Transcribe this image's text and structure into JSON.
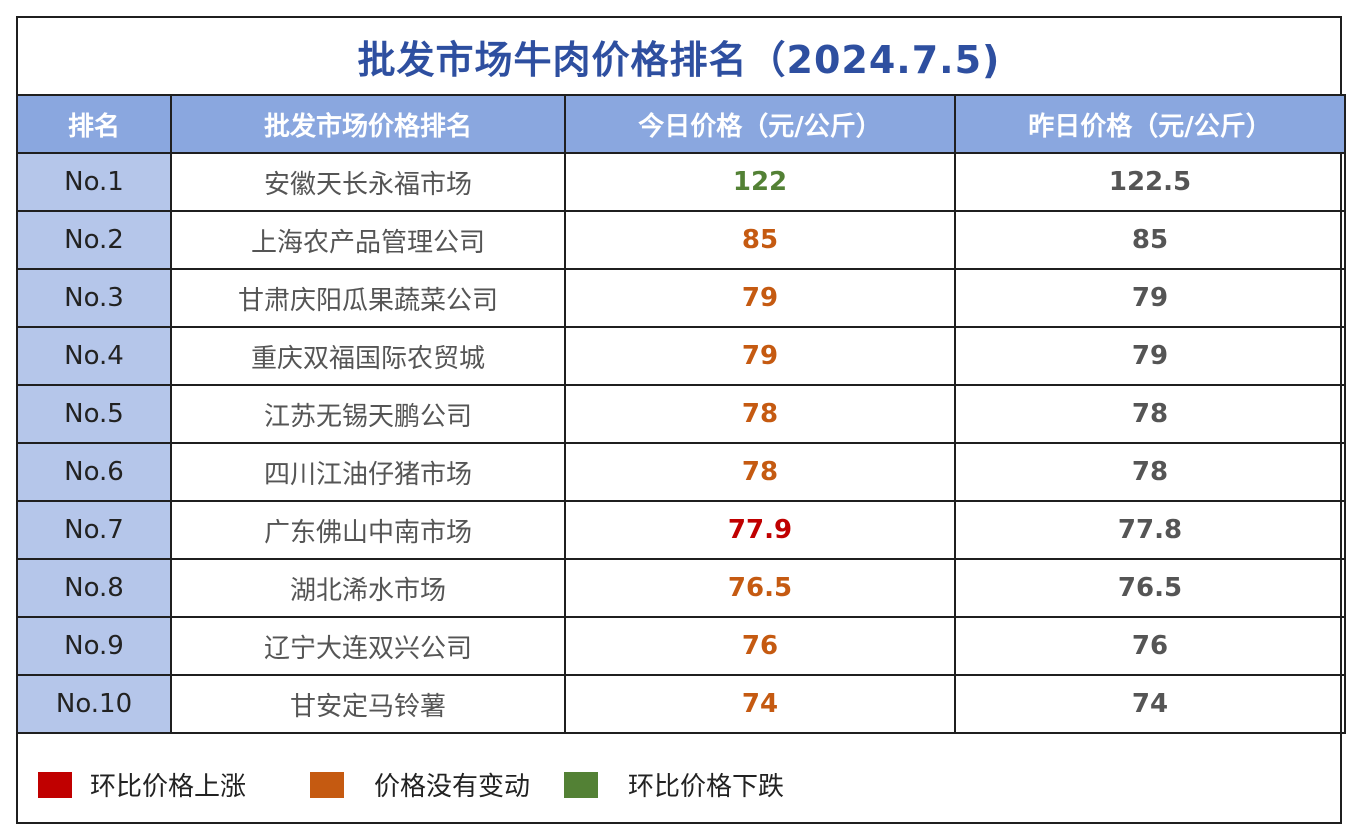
{
  "title": "批发市场牛肉价格排名（2024.7.5)",
  "colors": {
    "header_bg": "#8aa7df",
    "rank_bg": "#b5c6ea",
    "title": "#2e4fa0",
    "up": "#c00000",
    "same": "#c55a11",
    "down": "#538135"
  },
  "headers": [
    "排名",
    "批发市场价格排名",
    "今日价格（元/公斤）",
    "昨日价格（元/公斤）"
  ],
  "rows": [
    {
      "rank": "No.1",
      "market": "安徽天长永福市场",
      "today": "122",
      "yesterday": "122.5",
      "trend": "down"
    },
    {
      "rank": "No.2",
      "market": "上海农产品管理公司",
      "today": "85",
      "yesterday": "85",
      "trend": "same"
    },
    {
      "rank": "No.3",
      "market": "甘肃庆阳瓜果蔬菜公司",
      "today": "79",
      "yesterday": "79",
      "trend": "same"
    },
    {
      "rank": "No.4",
      "market": "重庆双福国际农贸城",
      "today": "79",
      "yesterday": "79",
      "trend": "same"
    },
    {
      "rank": "No.5",
      "market": "江苏无锡天鹏公司",
      "today": "78",
      "yesterday": "78",
      "trend": "same"
    },
    {
      "rank": "No.6",
      "market": "四川江油仔猪市场",
      "today": "78",
      "yesterday": "78",
      "trend": "same"
    },
    {
      "rank": "No.7",
      "market": "广东佛山中南市场",
      "today": "77.9",
      "yesterday": "77.8",
      "trend": "up"
    },
    {
      "rank": "No.8",
      "market": "湖北浠水市场",
      "today": "76.5",
      "yesterday": "76.5",
      "trend": "same"
    },
    {
      "rank": "No.9",
      "market": "辽宁大连双兴公司",
      "today": "76",
      "yesterday": "76",
      "trend": "same"
    },
    {
      "rank": "No.10",
      "market": "甘安定马铃薯",
      "today": "74",
      "yesterday": "74",
      "trend": "same"
    }
  ],
  "legend": [
    {
      "label": "环比价格上涨",
      "color": "#c00000"
    },
    {
      "label": "价格没有变动",
      "color": "#c55a11"
    },
    {
      "label": "环比价格下跌",
      "color": "#538135"
    }
  ]
}
